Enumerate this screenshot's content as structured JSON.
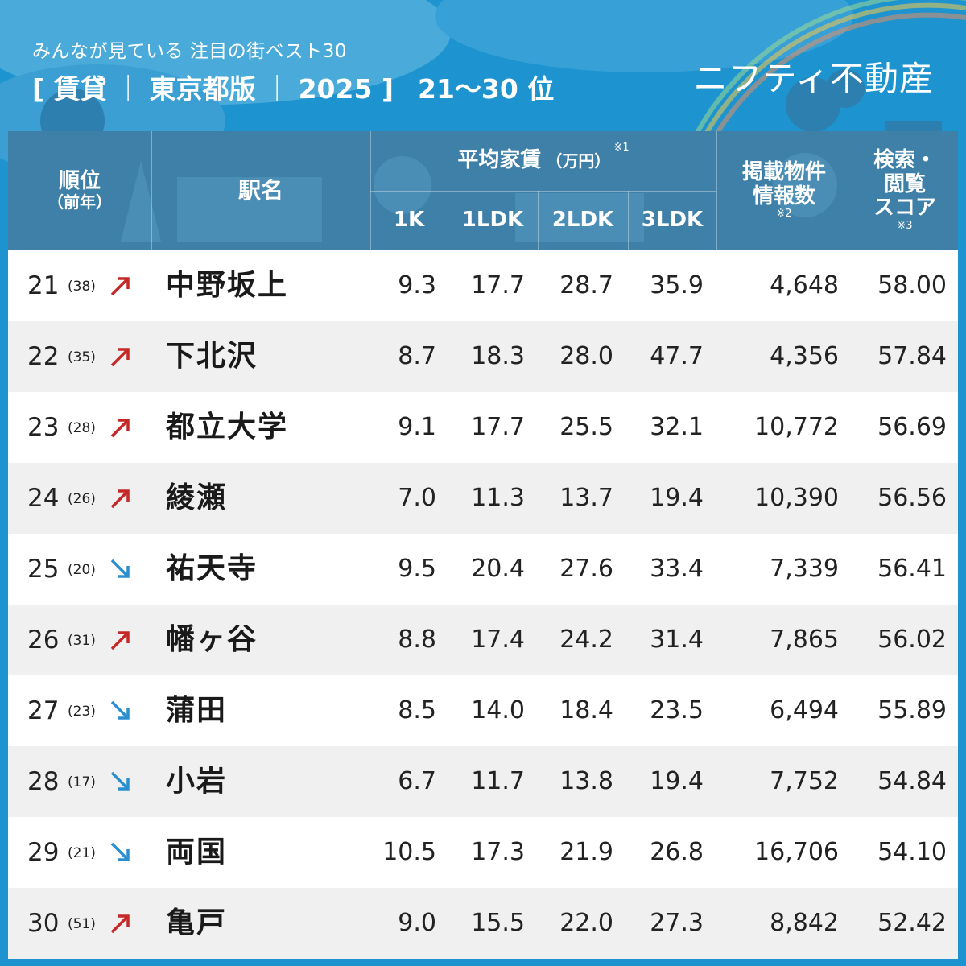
{
  "header": {
    "subtitle": "みんなが見ている 注目の街ベスト30",
    "title_open": "[ 賃貸",
    "title_tokyo": "東京都版",
    "title_year": "2025 ]",
    "title_sep": "｜",
    "title_range": "21〜30 位",
    "brand": "ニフティ不動産"
  },
  "columns": {
    "rank_top": "順位",
    "rank_bottom": "（前年）",
    "station": "駅名",
    "avg_rent": "平均家賃",
    "avg_rent_unit": "（万円）",
    "avg_rent_note": "※1",
    "k1": "1K",
    "ldk1": "1LDK",
    "ldk2": "2LDK",
    "ldk3": "3LDK",
    "listings_line1": "掲載物件",
    "listings_line2": "情報数",
    "listings_note": "※2",
    "score_line1": "検索・",
    "score_line2": "閲覧",
    "score_line3": "スコア",
    "score_note": "※3"
  },
  "colors": {
    "up_arrow": "#c62828",
    "down_arrow": "#2a8fcf",
    "header_band": "#3f80a8",
    "background": "#1d94cf"
  },
  "rows": [
    {
      "rank": "21",
      "prev": "(38)",
      "trend": "up",
      "station": "中野坂上",
      "k1": "9.3",
      "ldk1": "17.7",
      "ldk2": "28.7",
      "ldk3": "35.9",
      "listings": "4,648",
      "score": "58.00"
    },
    {
      "rank": "22",
      "prev": "(35)",
      "trend": "up",
      "station": "下北沢",
      "k1": "8.7",
      "ldk1": "18.3",
      "ldk2": "28.0",
      "ldk3": "47.7",
      "listings": "4,356",
      "score": "57.84"
    },
    {
      "rank": "23",
      "prev": "(28)",
      "trend": "up",
      "station": "都立大学",
      "k1": "9.1",
      "ldk1": "17.7",
      "ldk2": "25.5",
      "ldk3": "32.1",
      "listings": "10,772",
      "score": "56.69"
    },
    {
      "rank": "24",
      "prev": "(26)",
      "trend": "up",
      "station": "綾瀬",
      "k1": "7.0",
      "ldk1": "11.3",
      "ldk2": "13.7",
      "ldk3": "19.4",
      "listings": "10,390",
      "score": "56.56"
    },
    {
      "rank": "25",
      "prev": "(20)",
      "trend": "down",
      "station": "祐天寺",
      "k1": "9.5",
      "ldk1": "20.4",
      "ldk2": "27.6",
      "ldk3": "33.4",
      "listings": "7,339",
      "score": "56.41"
    },
    {
      "rank": "26",
      "prev": "(31)",
      "trend": "up",
      "station": "幡ヶ谷",
      "k1": "8.8",
      "ldk1": "17.4",
      "ldk2": "24.2",
      "ldk3": "31.4",
      "listings": "7,865",
      "score": "56.02"
    },
    {
      "rank": "27",
      "prev": "(23)",
      "trend": "down",
      "station": "蒲田",
      "k1": "8.5",
      "ldk1": "14.0",
      "ldk2": "18.4",
      "ldk3": "23.5",
      "listings": "6,494",
      "score": "55.89"
    },
    {
      "rank": "28",
      "prev": "(17)",
      "trend": "down",
      "station": "小岩",
      "k1": "6.7",
      "ldk1": "11.7",
      "ldk2": "13.8",
      "ldk3": "19.4",
      "listings": "7,752",
      "score": "54.84"
    },
    {
      "rank": "29",
      "prev": "(21)",
      "trend": "down",
      "station": "両国",
      "k1": "10.5",
      "ldk1": "17.3",
      "ldk2": "21.9",
      "ldk3": "26.8",
      "listings": "16,706",
      "score": "54.10"
    },
    {
      "rank": "30",
      "prev": "(51)",
      "trend": "up",
      "station": "亀戸",
      "k1": "9.0",
      "ldk1": "15.5",
      "ldk2": "22.0",
      "ldk3": "27.3",
      "listings": "8,842",
      "score": "52.42"
    }
  ]
}
